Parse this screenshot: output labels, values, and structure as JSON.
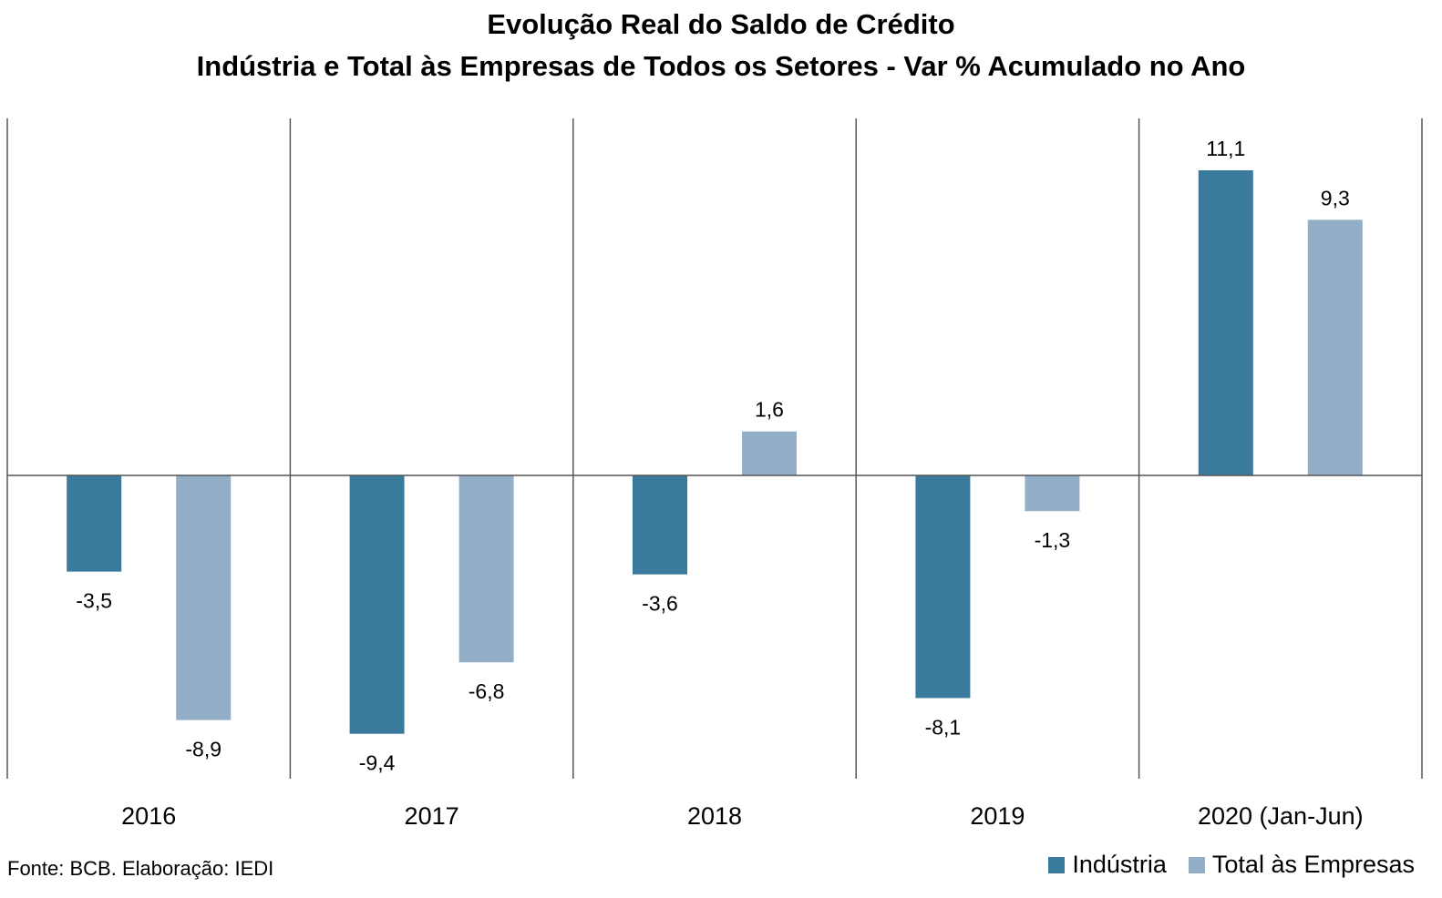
{
  "chart_data": {
    "type": "bar",
    "title": "Evolução Real do Saldo de Crédito",
    "subtitle": "Indústria e Total às Empresas de Todos os Setores - Var % Acumulado no Ano",
    "categories": [
      "2016",
      "2017",
      "2018",
      "2019",
      "2020 (Jan-Jun)"
    ],
    "series": [
      {
        "name": "Indústria",
        "color": "#3a7a9d",
        "values": [
          -3.5,
          -9.4,
          -3.6,
          -8.1,
          11.1
        ],
        "labels": [
          "-3,5",
          "-9,4",
          "-3,6",
          "-8,1",
          "11,1"
        ]
      },
      {
        "name": "Total às Empresas",
        "color": "#93afc8",
        "values": [
          -8.9,
          -6.8,
          1.6,
          -1.3,
          9.3
        ],
        "labels": [
          "-8,9",
          "-6,8",
          "1,6",
          "-1,3",
          "9,3"
        ]
      }
    ],
    "ylim": [
      -11.1,
      13.1
    ],
    "grid": "vertical separators between categories",
    "legend_position": "bottom-right"
  },
  "source": "Fonte: BCB. Elaboração: IEDI"
}
